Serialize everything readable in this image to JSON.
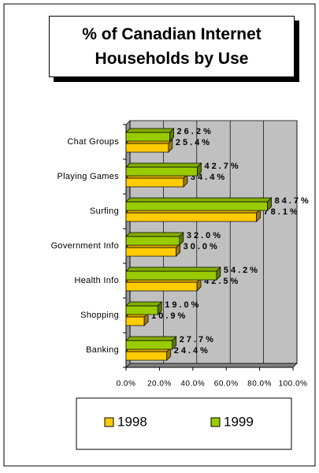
{
  "chart_data": {
    "type": "bar",
    "orientation": "horizontal",
    "title": "% of Canadian Internet Households by Use",
    "categories": [
      "Chat Groups",
      "Playing Games",
      "Surfing",
      "Government Info",
      "Health Info",
      "Shopping",
      "Banking"
    ],
    "series": [
      {
        "name": "1998",
        "color": "#ffcc00",
        "values": [
          25.4,
          34.4,
          78.1,
          30.0,
          42.5,
          10.9,
          24.4
        ],
        "value_labels": [
          "25.4%",
          "34.4%",
          "78.1%",
          "30.0%",
          "42.5%",
          "10.9%",
          "24.4%"
        ]
      },
      {
        "name": "1999",
        "color": "#99cc00",
        "values": [
          26.2,
          42.7,
          84.7,
          32.0,
          54.2,
          19.0,
          27.7
        ],
        "value_labels": [
          "26.2%",
          "42.7%",
          "84.7%",
          "32.0%",
          "54.2%",
          "19.0%",
          "27.7%"
        ]
      }
    ],
    "xlim": [
      0,
      100
    ],
    "xticks": [
      {
        "value": 0,
        "label": "0.0%"
      },
      {
        "value": 20,
        "label": "20.0%"
      },
      {
        "value": 40,
        "label": "40.0%"
      },
      {
        "value": 60,
        "label": "60.0%"
      },
      {
        "value": 80,
        "label": "80.0%"
      },
      {
        "value": 100,
        "label": "100.0%"
      }
    ],
    "grid": true,
    "legend": "bottom"
  }
}
